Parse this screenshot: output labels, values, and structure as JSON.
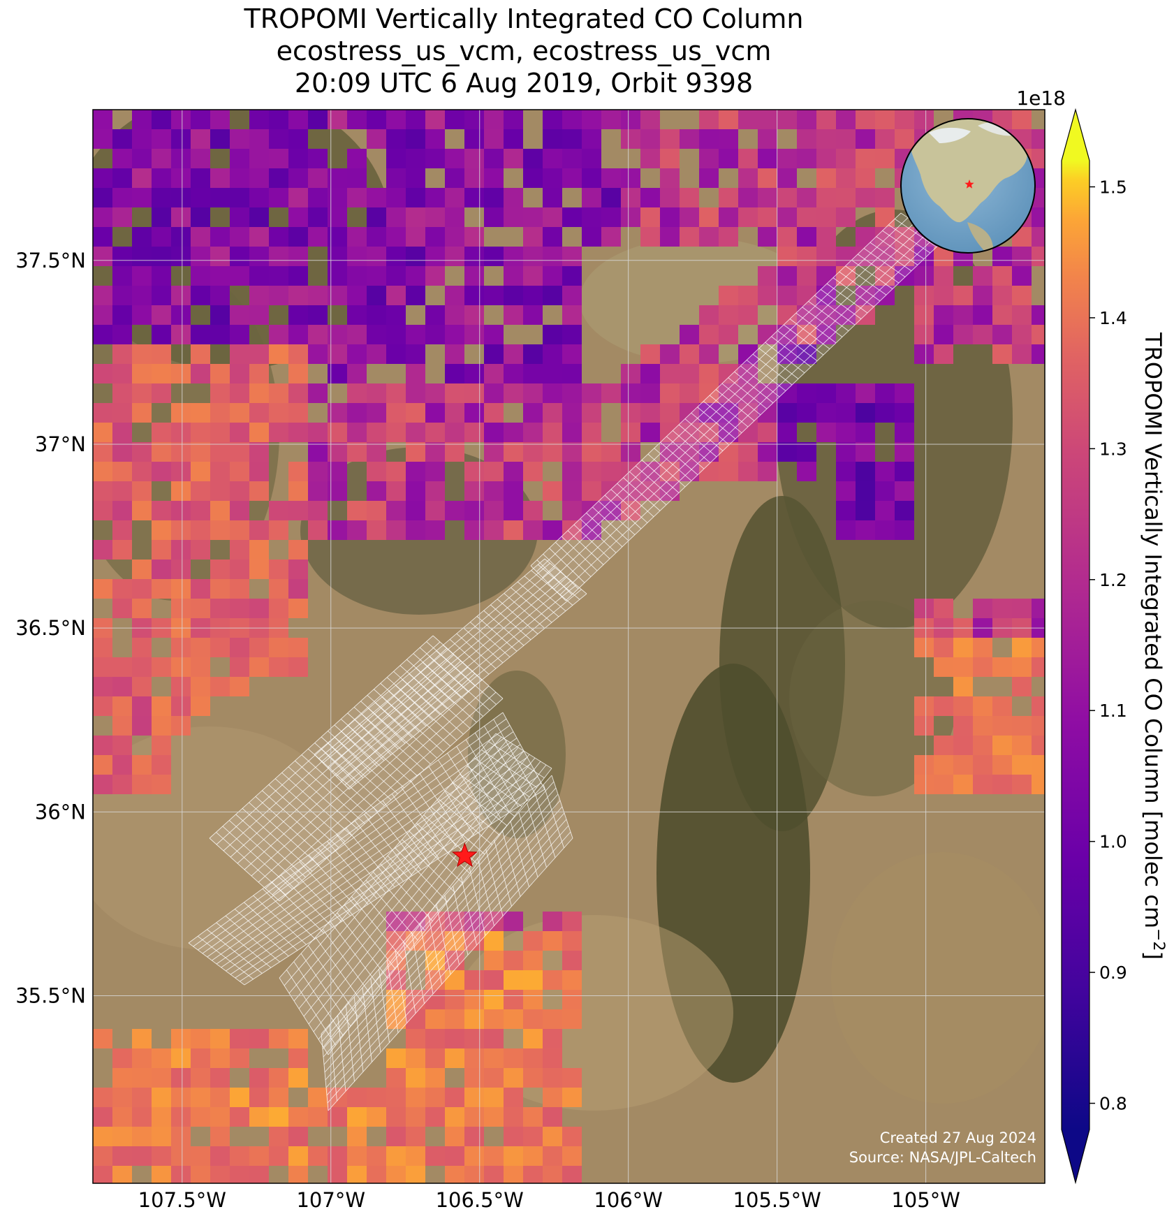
{
  "title": {
    "line1": "TROPOMI Vertically Integrated CO Column",
    "line2": "ecostress_us_vcm, ecostress_us_vcm",
    "line3": "20:09 UTC 6 Aug 2019, Orbit 9398"
  },
  "axes": {
    "lat_labels": [
      "37.5°N",
      "37°N",
      "36.5°N",
      "36°N",
      "35.5°N"
    ],
    "lat_values": [
      37.5,
      37.0,
      36.5,
      36.0,
      35.5
    ],
    "lon_labels": [
      "107.5°W",
      "107°W",
      "106.5°W",
      "106°W",
      "105.5°W",
      "105°W"
    ],
    "lon_values": [
      -107.5,
      -107.0,
      -106.5,
      -106.0,
      -105.5,
      -105.0
    ],
    "lon_range": [
      -107.8,
      -104.6
    ],
    "lat_range": [
      34.99,
      37.91
    ],
    "grid": true
  },
  "colorbar": {
    "label": "TROPOMI Vertically Integrated CO Column [molec cm",
    "label_sup": "−2",
    "label_close": "]",
    "exponent": "1e18",
    "ticks": [
      "0.8",
      "0.9",
      "1.0",
      "1.1",
      "1.2",
      "1.3",
      "1.4",
      "1.5"
    ],
    "tick_values": [
      0.8,
      0.9,
      1.0,
      1.1,
      1.2,
      1.3,
      1.4,
      1.5
    ],
    "range": [
      0.78,
      1.52
    ],
    "colormap": "plasma",
    "extend": "both"
  },
  "credits": {
    "created": "Created 27 Aug 2024",
    "source": "Source: NASA/JPL-Caltech"
  },
  "marker": {
    "lon": -106.55,
    "lat": 35.88,
    "color": "#ff1a1a"
  },
  "inset": {
    "type": "globe",
    "marker_color": "#ff1a1a"
  },
  "colors": {
    "terrain_base": "#a38a64",
    "terrain_dark": "#4b4a2a",
    "footprint_grid": "#ffffff"
  }
}
